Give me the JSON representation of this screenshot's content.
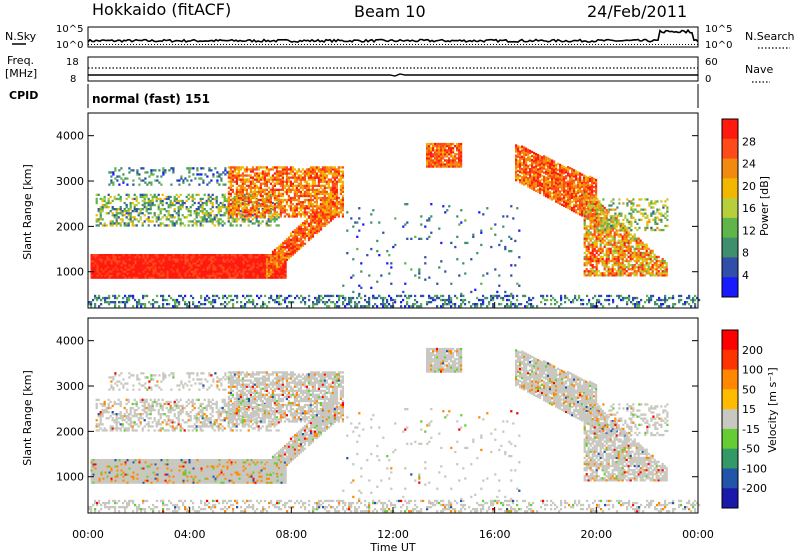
{
  "header": {
    "station": "Hokkaido (fitACF)",
    "beam": "Beam 10",
    "date": "24/Feb/2011"
  },
  "side_labels": {
    "nsky": "N.Sky",
    "freq_line1": "Freq.",
    "freq_line2": "[MHz]",
    "cpid": "CPID",
    "nsearch": "N.Search",
    "nave": "Nave"
  },
  "cpid_text": "normal (fast) 151",
  "colors": {
    "power": [
      "#1a1aff",
      "#2f4fa8",
      "#3f8f6e",
      "#5fb44a",
      "#b8cf3c",
      "#f2b800",
      "#f28a10",
      "#ff4a1a",
      "#ff1a10"
    ],
    "velocity": [
      "#ff0000",
      "#ff3300",
      "#ff8800",
      "#ffbb00",
      "#c8c8c0",
      "#66cc33",
      "#339966",
      "#2255aa",
      "#1a1aaa"
    ]
  },
  "chart_data": [
    {
      "type": "line",
      "panel": "noise",
      "series": [
        {
          "name": "N.Sky",
          "style": "solid"
        },
        {
          "name": "N.Search",
          "style": "dotted"
        }
      ],
      "left_ticks": [
        "10^5",
        "10^0"
      ],
      "right_ticks": [
        "10^5",
        "10^0"
      ]
    },
    {
      "type": "line",
      "panel": "frequency",
      "left_ticks": [
        "18",
        "8"
      ],
      "right_ticks": [
        "60",
        "0"
      ],
      "series": [
        {
          "name": "Freq.",
          "style": "solid"
        },
        {
          "name": "Nave",
          "style": "dotted"
        }
      ]
    },
    {
      "type": "heatmap",
      "panel": "power",
      "ylabel": "Slant Range [km]",
      "y_ticks": [
        "1000",
        "2000",
        "3000",
        "4000"
      ],
      "ylim": [
        200,
        4500
      ],
      "xlim": [
        0,
        24
      ],
      "colorbar_label": "Power [dB]",
      "colorbar_ticks": [
        "28",
        "24",
        "20",
        "16",
        "12",
        "8",
        "4"
      ]
    },
    {
      "type": "heatmap",
      "panel": "velocity",
      "ylabel": "Slant Range [km]",
      "y_ticks": [
        "1000",
        "2000",
        "3000",
        "4000"
      ],
      "ylim": [
        200,
        4500
      ],
      "xlim": [
        0,
        24
      ],
      "xlabel": "Time UT",
      "x_ticks": [
        "00:00",
        "04:00",
        "08:00",
        "12:00",
        "16:00",
        "20:00",
        "00:00"
      ],
      "colorbar_label": "Velocity [m s⁻¹]",
      "colorbar_ticks": [
        "200",
        "100",
        "50",
        "15",
        "-15",
        "-50",
        "-100",
        "-200"
      ]
    }
  ]
}
